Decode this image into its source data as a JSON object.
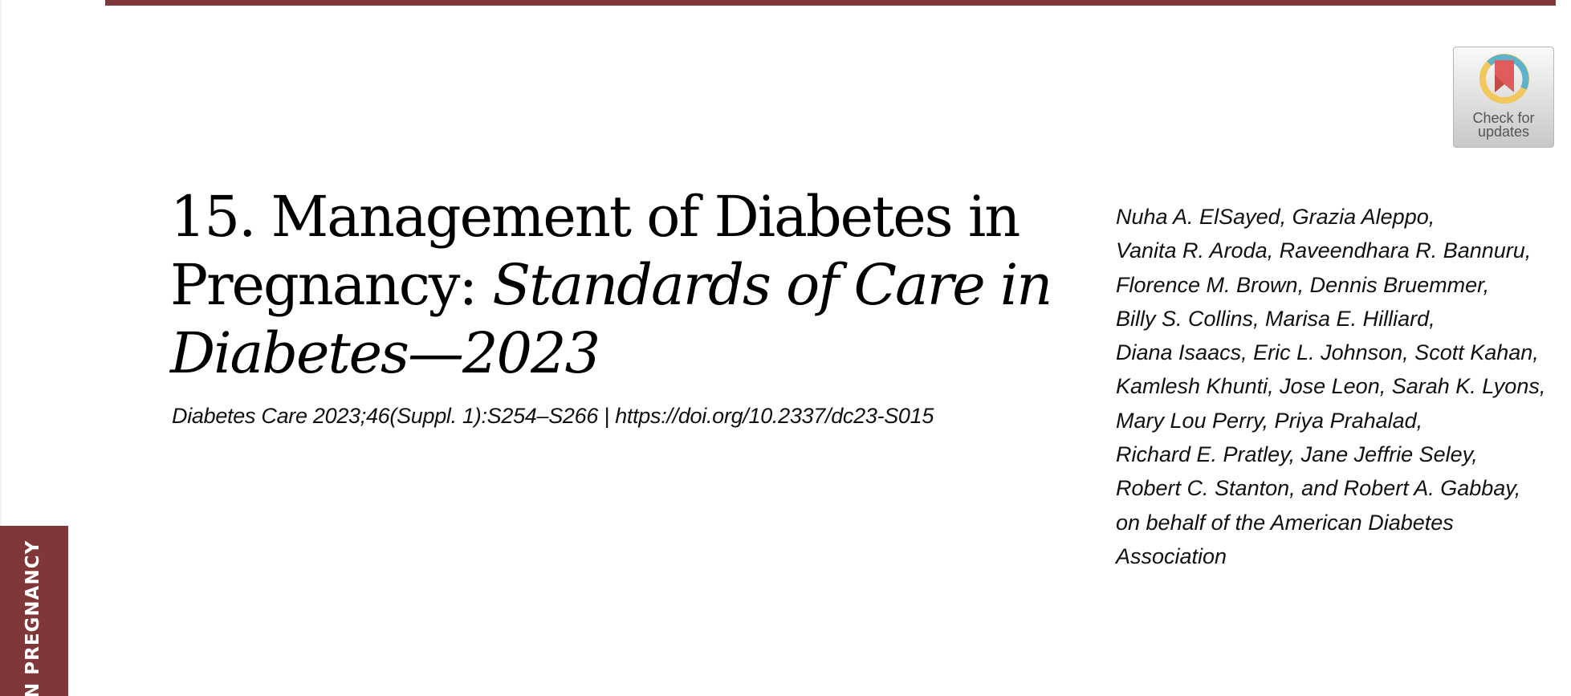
{
  "header": {
    "accent_color": "#7f3739"
  },
  "side_tab": {
    "label": "N PREGNANCY"
  },
  "badge": {
    "line1": "Check for",
    "line2": "updates",
    "icon": "bookmark-ring-icon"
  },
  "article": {
    "title_plain": "15. Management of Diabetes in Pregnancy: ",
    "title_italic": "Standards of Care in Diabetes—2023",
    "citation": "Diabetes Care 2023;46(Suppl. 1):S254–S266 | https://doi.org/10.2337/dc23-S015",
    "authors": [
      "Nuha A. ElSayed, Grazia Aleppo,",
      "Vanita R. Aroda, Raveendhara R. Bannuru,",
      "Florence M. Brown, Dennis Bruemmer,",
      "Billy S. Collins, Marisa E. Hilliard,",
      "Diana Isaacs, Eric L. Johnson, Scott Kahan,",
      "Kamlesh Khunti, Jose Leon, Sarah K. Lyons,",
      "Mary Lou Perry, Priya Prahalad,",
      "Richard E. Pratley, Jane Jeffrie Seley,",
      "Robert C. Stanton, and Robert A. Gabbay,",
      "on behalf of the American Diabetes",
      "Association"
    ]
  }
}
